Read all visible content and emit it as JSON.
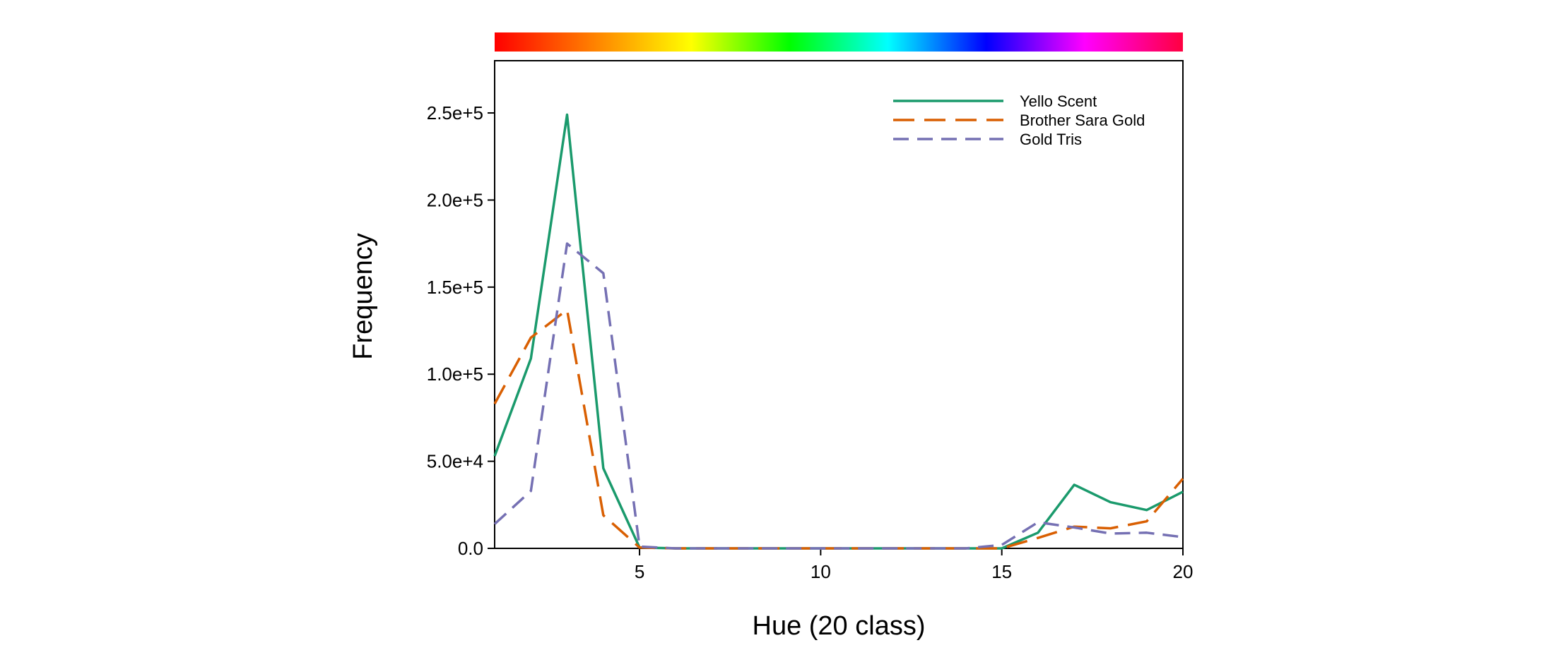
{
  "chart_data": {
    "type": "line",
    "title": "",
    "xlabel": "Hue (20 class)",
    "ylabel": "Frequency",
    "xlim": [
      1,
      20
    ],
    "ylim": [
      0,
      280000
    ],
    "grid": false,
    "legend_position": "top-right",
    "x": [
      1,
      2,
      3,
      4,
      5,
      6,
      7,
      8,
      9,
      10,
      11,
      12,
      13,
      14,
      15,
      16,
      17,
      18,
      19,
      20
    ],
    "x_ticks": [
      5,
      10,
      15,
      20
    ],
    "x_tick_labels": [
      "5",
      "10",
      "15",
      "20"
    ],
    "y_ticks": [
      0,
      50000,
      100000,
      150000,
      200000,
      250000
    ],
    "y_tick_labels": [
      "0.0",
      "5.0e+4",
      "1.0e+5",
      "1.5e+5",
      "2.0e+5",
      "2.5e+5"
    ],
    "hue_colorbar": [
      "#ff0000",
      "#ff8000",
      "#ffff00",
      "#00ff00",
      "#00ffff",
      "#0000ff",
      "#ff00ff",
      "#ff0040"
    ],
    "series": [
      {
        "name": "Yello Scent",
        "color": "#1a9a6c",
        "dash": "solid",
        "values": [
          53000,
          109000,
          249000,
          46000,
          500,
          0,
          0,
          0,
          0,
          0,
          0,
          0,
          0,
          0,
          0,
          9000,
          36500,
          26500,
          22000,
          32500
        ]
      },
      {
        "name": "Brother Sara Gold",
        "color": "#d95f02",
        "dash": "long-dash",
        "values": [
          83000,
          121000,
          137000,
          19000,
          500,
          0,
          0,
          0,
          0,
          0,
          0,
          0,
          0,
          0,
          0,
          6000,
          12500,
          11500,
          15500,
          40000
        ]
      },
      {
        "name": "Gold Tris",
        "color": "#7570b3",
        "dash": "dash",
        "values": [
          14000,
          33000,
          175000,
          158000,
          1000,
          0,
          0,
          0,
          0,
          0,
          0,
          0,
          0,
          0,
          2000,
          15000,
          12000,
          8500,
          9000,
          6500
        ]
      }
    ]
  }
}
